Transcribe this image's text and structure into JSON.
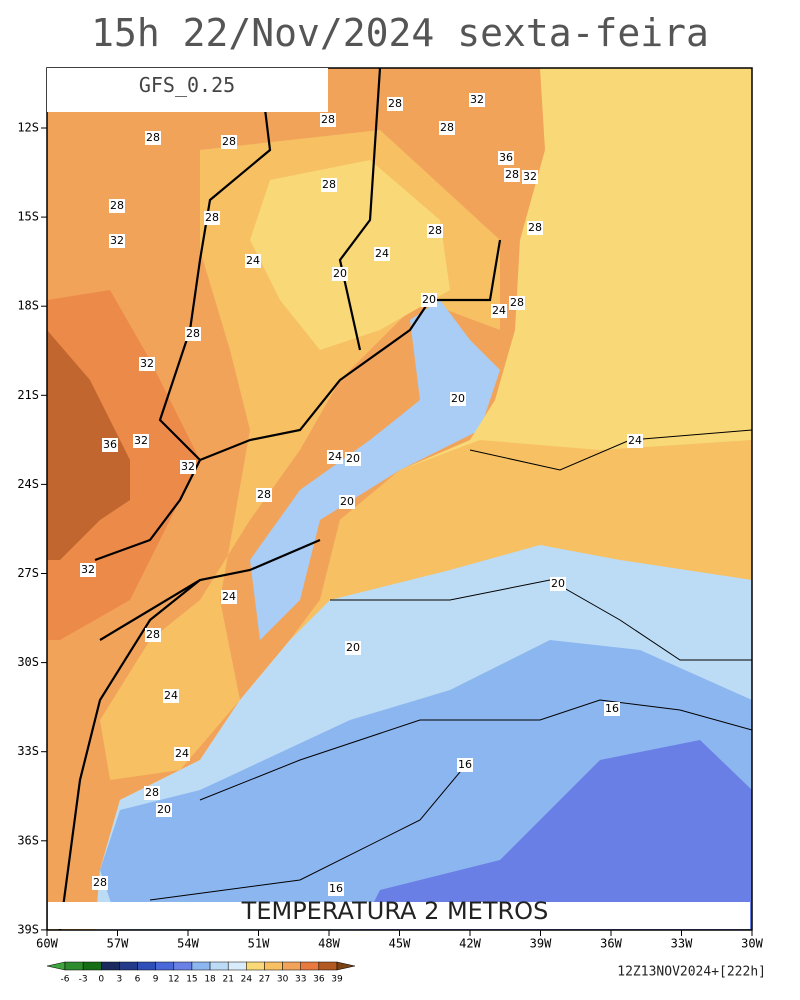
{
  "map": {
    "title": "15h 22/Nov/2024 sexta-feira",
    "model": "GFS_0.25",
    "field": "TEMPERATURA 2 METROS",
    "run": "12Z13NOV2024+[222h]",
    "lat_ticks": [
      "12S",
      "15S",
      "18S",
      "21S",
      "24S",
      "27S",
      "30S",
      "33S",
      "36S",
      "39S"
    ],
    "lon_ticks": [
      "60W",
      "57W",
      "54W",
      "51W",
      "48W",
      "45W",
      "42W",
      "39W",
      "36W",
      "33W",
      "30W"
    ],
    "colorbar": {
      "ticks": [
        -6,
        -3,
        0,
        3,
        6,
        9,
        12,
        15,
        18,
        21,
        24,
        27,
        30,
        33,
        36,
        39
      ],
      "colors": [
        "#3fa33f",
        "#2e8b2e",
        "#156d15",
        "#1a2a5e",
        "#233a8a",
        "#2f4fb8",
        "#4a68d8",
        "#6a80e6",
        "#8cb6f0",
        "#bcdcf6",
        "#d8ecfb",
        "#f9d877",
        "#f6c063",
        "#f2a35a",
        "#e8793f",
        "#b35a22",
        "#7a4112"
      ]
    },
    "contour_labels": [
      28,
      32,
      28,
      28,
      28,
      28,
      28,
      36,
      28,
      32,
      28,
      28,
      32,
      28,
      24,
      24,
      20,
      20,
      28,
      28,
      24,
      28,
      32,
      20,
      36,
      32,
      24,
      24,
      20,
      32,
      28,
      20,
      32,
      24,
      28,
      20,
      20,
      24,
      16,
      24,
      16,
      28,
      20,
      28,
      16
    ]
  }
}
